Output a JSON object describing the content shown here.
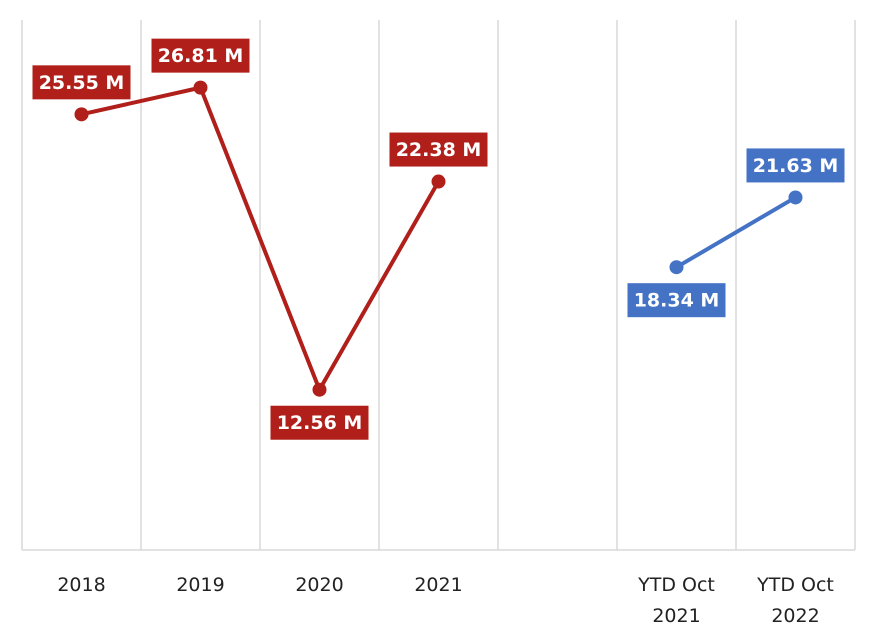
{
  "chart_data": {
    "type": "line",
    "categories": [
      "2018",
      "2019",
      "2020",
      "2021",
      null,
      "YTD Oct 2021",
      "YTD Oct 2022"
    ],
    "series": [
      {
        "color": "#b01f1a",
        "values": [
          25.55,
          26.81,
          12.56,
          22.38,
          null,
          null,
          null
        ],
        "value_labels": [
          "25.55 M",
          "26.81 M",
          "12.56 M",
          "22.38 M",
          null,
          null,
          null
        ]
      },
      {
        "color": "#4472c4",
        "values": [
          null,
          null,
          null,
          null,
          null,
          18.34,
          21.63
        ],
        "value_labels": [
          null,
          null,
          null,
          null,
          null,
          "18.34 M",
          "21.63 M"
        ]
      }
    ],
    "ylim": [
      5,
      30
    ],
    "grid": true
  }
}
